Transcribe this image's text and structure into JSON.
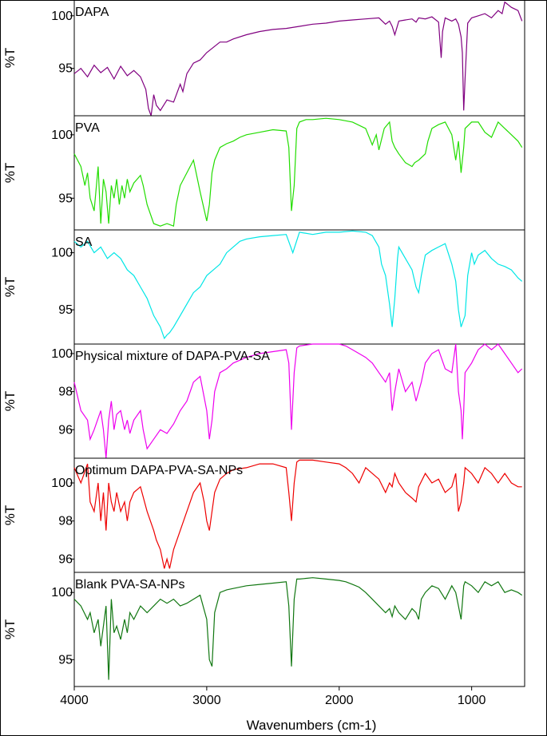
{
  "chart_data": {
    "type": "line",
    "xlabel": "Wavenumbers (cm-1)",
    "x_ticks": [
      4000,
      3000,
      2000,
      1000
    ],
    "xlim": [
      4000,
      600
    ],
    "panels": [
      {
        "name": "DAPA",
        "color": "#800080",
        "ylabel": "%T",
        "yticks": [
          95,
          100
        ],
        "ylim": [
          90.5,
          101.5
        ],
        "x": [
          4000,
          3950,
          3900,
          3850,
          3800,
          3750,
          3700,
          3650,
          3600,
          3550,
          3500,
          3460,
          3440,
          3420,
          3410,
          3400,
          3380,
          3350,
          3300,
          3250,
          3200,
          3180,
          3150,
          3100,
          3050,
          3000,
          2950,
          2900,
          2850,
          2800,
          2700,
          2600,
          2500,
          2400,
          2300,
          2200,
          2100,
          2000,
          1900,
          1800,
          1700,
          1650,
          1620,
          1600,
          1580,
          1550,
          1500,
          1450,
          1420,
          1400,
          1350,
          1300,
          1250,
          1230,
          1220,
          1200,
          1150,
          1120,
          1100,
          1080,
          1070,
          1060,
          1050,
          1030,
          1000,
          950,
          900,
          850,
          800,
          770,
          750,
          700,
          650,
          620
        ],
        "y": [
          94.5,
          95.0,
          94.2,
          95.3,
          94.6,
          95.1,
          94.0,
          95.2,
          94.3,
          94.8,
          94.2,
          93.0,
          91.2,
          90.5,
          91.5,
          92.5,
          91.5,
          91.0,
          92.0,
          91.8,
          93.5,
          92.8,
          94.5,
          95.5,
          95.8,
          96.5,
          97.0,
          97.5,
          97.5,
          97.8,
          98.2,
          98.5,
          98.7,
          98.8,
          99.0,
          99.2,
          99.3,
          99.5,
          99.6,
          99.7,
          99.8,
          99.2,
          99.5,
          99.0,
          98.2,
          99.5,
          99.6,
          99.7,
          99.4,
          99.8,
          99.7,
          99.9,
          99.4,
          96.0,
          98.5,
          99.8,
          99.5,
          99.7,
          99.2,
          98.0,
          96.5,
          91.0,
          94.0,
          99.3,
          99.8,
          100.0,
          100.2,
          99.8,
          100.5,
          100.2,
          101.3,
          100.8,
          100.5,
          99.5
        ]
      },
      {
        "name": "PVA",
        "color": "#22dd00",
        "ylabel": "%T",
        "yticks": [
          95,
          100
        ],
        "ylim": [
          92.5,
          101.5
        ],
        "x": [
          4000,
          3950,
          3920,
          3900,
          3880,
          3850,
          3820,
          3800,
          3780,
          3760,
          3740,
          3720,
          3700,
          3680,
          3660,
          3640,
          3620,
          3600,
          3580,
          3550,
          3500,
          3480,
          3450,
          3400,
          3350,
          3300,
          3250,
          3230,
          3200,
          3150,
          3100,
          3050,
          3000,
          2980,
          2960,
          2940,
          2900,
          2850,
          2800,
          2750,
          2700,
          2600,
          2500,
          2400,
          2380,
          2360,
          2340,
          2320,
          2300,
          2250,
          2200,
          2100,
          2000,
          1900,
          1800,
          1750,
          1720,
          1700,
          1660,
          1620,
          1600,
          1580,
          1550,
          1500,
          1450,
          1430,
          1400,
          1350,
          1330,
          1300,
          1250,
          1200,
          1150,
          1120,
          1100,
          1080,
          1060,
          1050,
          1000,
          950,
          900,
          850,
          800,
          750,
          700,
          650,
          620
        ],
        "y": [
          98.5,
          97.5,
          96.0,
          97.0,
          95.0,
          94.0,
          97.5,
          93.0,
          96.5,
          95.5,
          93.0,
          96.0,
          95.0,
          96.5,
          94.5,
          96.0,
          95.0,
          96.5,
          95.5,
          96.2,
          96.8,
          96.0,
          94.5,
          93.0,
          92.8,
          93.0,
          92.8,
          94.5,
          96.0,
          97.0,
          98.0,
          95.5,
          93.2,
          94.5,
          97.0,
          98.0,
          99.0,
          99.3,
          99.5,
          99.8,
          100.0,
          100.2,
          100.4,
          100.3,
          99.0,
          94.0,
          96.0,
          100.5,
          101.0,
          101.2,
          101.2,
          101.3,
          101.2,
          101.0,
          100.5,
          99.2,
          100.0,
          98.8,
          100.5,
          101.0,
          99.5,
          99.0,
          98.5,
          97.8,
          97.5,
          97.8,
          98.0,
          98.5,
          99.5,
          100.5,
          100.8,
          101.0,
          100.0,
          98.0,
          99.5,
          97.0,
          99.0,
          100.5,
          101.0,
          101.0,
          100.2,
          99.8,
          101.0,
          100.5,
          100.0,
          99.5,
          99.0
        ]
      },
      {
        "name": "SA",
        "color": "#00e6e6",
        "ylabel": "%T",
        "yticks": [
          95,
          100
        ],
        "ylim": [
          92.0,
          102.0
        ],
        "x": [
          4000,
          3950,
          3900,
          3850,
          3800,
          3750,
          3700,
          3650,
          3600,
          3550,
          3500,
          3450,
          3400,
          3350,
          3320,
          3300,
          3280,
          3250,
          3200,
          3150,
          3100,
          3050,
          3000,
          2950,
          2900,
          2850,
          2800,
          2750,
          2700,
          2600,
          2500,
          2400,
          2350,
          2300,
          2200,
          2100,
          2000,
          1900,
          1800,
          1750,
          1700,
          1680,
          1650,
          1620,
          1600,
          1580,
          1560,
          1550,
          1500,
          1450,
          1420,
          1400,
          1380,
          1350,
          1300,
          1250,
          1200,
          1150,
          1120,
          1100,
          1080,
          1050,
          1030,
          1000,
          980,
          950,
          900,
          850,
          800,
          750,
          700,
          650,
          620
        ],
        "y": [
          101.0,
          100.5,
          101.0,
          100.0,
          100.5,
          99.5,
          100.0,
          99.5,
          98.5,
          98.0,
          97.0,
          96.0,
          94.5,
          93.5,
          92.5,
          92.8,
          93.0,
          93.5,
          94.5,
          95.5,
          96.5,
          97.0,
          98.0,
          98.5,
          99.0,
          100.0,
          100.5,
          101.0,
          101.2,
          101.4,
          101.5,
          101.6,
          100.0,
          101.8,
          101.6,
          101.8,
          101.8,
          101.9,
          101.8,
          101.5,
          100.5,
          99.0,
          98.0,
          95.5,
          93.5,
          96.0,
          99.5,
          100.5,
          99.5,
          98.5,
          97.0,
          96.5,
          98.0,
          99.8,
          100.2,
          100.5,
          100.8,
          99.0,
          97.5,
          95.0,
          93.5,
          94.5,
          98.0,
          100.0,
          99.0,
          99.8,
          100.2,
          99.5,
          99.0,
          98.8,
          98.5,
          97.8,
          97.5
        ]
      },
      {
        "name": "Physical mixture of DAPA-PVA-SA",
        "color": "#ee00ee",
        "ylabel": "%T",
        "yticks": [
          96,
          98,
          100
        ],
        "ylim": [
          94.5,
          100.5
        ],
        "x": [
          4000,
          3950,
          3900,
          3880,
          3850,
          3800,
          3780,
          3760,
          3740,
          3720,
          3700,
          3680,
          3650,
          3620,
          3600,
          3580,
          3550,
          3500,
          3480,
          3450,
          3400,
          3350,
          3300,
          3250,
          3200,
          3150,
          3100,
          3050,
          3000,
          2980,
          2960,
          2940,
          2900,
          2850,
          2800,
          2700,
          2600,
          2500,
          2400,
          2380,
          2360,
          2340,
          2320,
          2300,
          2200,
          2100,
          2000,
          1950,
          1900,
          1850,
          1800,
          1750,
          1700,
          1650,
          1620,
          1600,
          1580,
          1550,
          1500,
          1450,
          1420,
          1400,
          1380,
          1350,
          1300,
          1250,
          1200,
          1150,
          1120,
          1100,
          1080,
          1070,
          1060,
          1050,
          1000,
          950,
          900,
          850,
          800,
          750,
          700,
          650,
          620
        ],
        "y": [
          98.5,
          97.0,
          96.5,
          95.5,
          96.0,
          97.0,
          96.0,
          94.5,
          96.5,
          97.5,
          96.0,
          96.8,
          97.0,
          96.0,
          96.5,
          95.8,
          96.5,
          97.0,
          96.0,
          95.0,
          95.5,
          96.0,
          95.8,
          96.3,
          97.0,
          97.5,
          98.5,
          98.8,
          97.0,
          95.5,
          96.5,
          98.0,
          99.0,
          99.2,
          99.5,
          99.8,
          100.0,
          100.1,
          100.2,
          99.5,
          96.0,
          99.0,
          100.3,
          100.4,
          100.5,
          100.5,
          100.5,
          100.4,
          100.2,
          100.0,
          99.8,
          99.5,
          99.0,
          98.5,
          99.0,
          97.0,
          98.0,
          99.2,
          98.0,
          98.5,
          97.5,
          98.0,
          98.5,
          99.5,
          100.0,
          100.2,
          99.2,
          99.0,
          100.5,
          98.0,
          97.0,
          95.5,
          97.0,
          99.0,
          99.5,
          100.2,
          100.5,
          100.2,
          100.5,
          100.0,
          99.5,
          99.0,
          99.2
        ]
      },
      {
        "name": "Optimum DAPA-PVA-SA-NPs",
        "color": "#ee0000",
        "ylabel": "%T",
        "yticks": [
          96,
          98,
          100
        ],
        "ylim": [
          95.3,
          101.3
        ],
        "x": [
          4000,
          3950,
          3900,
          3880,
          3850,
          3820,
          3800,
          3780,
          3760,
          3740,
          3720,
          3700,
          3680,
          3650,
          3620,
          3600,
          3580,
          3550,
          3500,
          3450,
          3400,
          3380,
          3350,
          3320,
          3300,
          3280,
          3250,
          3200,
          3150,
          3100,
          3050,
          3020,
          3000,
          2980,
          2960,
          2940,
          2900,
          2850,
          2800,
          2700,
          2600,
          2500,
          2400,
          2380,
          2360,
          2340,
          2320,
          2300,
          2200,
          2100,
          2000,
          1950,
          1900,
          1850,
          1800,
          1750,
          1700,
          1650,
          1620,
          1600,
          1580,
          1550,
          1500,
          1450,
          1420,
          1400,
          1350,
          1300,
          1250,
          1200,
          1150,
          1120,
          1100,
          1080,
          1060,
          1050,
          1000,
          950,
          900,
          850,
          800,
          750,
          700,
          650,
          620
        ],
        "y": [
          100.8,
          100.0,
          101.0,
          99.0,
          98.5,
          100.0,
          98.0,
          99.5,
          97.5,
          100.0,
          99.0,
          98.5,
          99.5,
          98.5,
          99.0,
          98.0,
          99.0,
          99.5,
          99.8,
          98.5,
          97.5,
          97.0,
          96.5,
          95.5,
          96.0,
          95.5,
          96.5,
          97.5,
          98.5,
          99.5,
          100.0,
          99.0,
          98.0,
          97.5,
          98.5,
          99.5,
          100.2,
          100.5,
          100.7,
          100.8,
          101.0,
          101.0,
          100.8,
          99.5,
          98.0,
          100.0,
          101.1,
          101.2,
          101.2,
          101.1,
          101.0,
          100.8,
          100.5,
          100.0,
          100.8,
          100.5,
          100.2,
          99.5,
          100.0,
          99.8,
          100.5,
          100.0,
          99.5,
          99.2,
          99.0,
          99.8,
          100.5,
          100.0,
          100.2,
          99.5,
          99.8,
          100.5,
          98.5,
          99.0,
          100.0,
          100.8,
          100.5,
          100.0,
          100.8,
          100.5,
          100.0,
          100.5,
          100.0,
          99.8,
          99.8
        ]
      },
      {
        "name": "Blank PVA-SA-NPs",
        "color": "#117711",
        "ylabel": "%T",
        "yticks": [
          95,
          100
        ],
        "ylim": [
          93.0,
          101.5
        ],
        "x": [
          4000,
          3950,
          3900,
          3880,
          3850,
          3820,
          3800,
          3780,
          3760,
          3740,
          3720,
          3700,
          3680,
          3650,
          3620,
          3600,
          3580,
          3550,
          3500,
          3450,
          3400,
          3350,
          3300,
          3250,
          3200,
          3150,
          3100,
          3050,
          3000,
          2980,
          2960,
          2940,
          2900,
          2850,
          2800,
          2700,
          2600,
          2500,
          2400,
          2380,
          2360,
          2340,
          2320,
          2300,
          2200,
          2100,
          2000,
          1950,
          1900,
          1850,
          1800,
          1750,
          1700,
          1650,
          1620,
          1600,
          1580,
          1550,
          1500,
          1450,
          1420,
          1400,
          1380,
          1350,
          1300,
          1250,
          1200,
          1150,
          1120,
          1100,
          1080,
          1060,
          1050,
          1000,
          950,
          900,
          850,
          800,
          750,
          700,
          650,
          620
        ],
        "y": [
          99.5,
          99.0,
          98.0,
          98.5,
          97.0,
          98.0,
          96.0,
          97.5,
          99.0,
          93.5,
          99.5,
          97.0,
          97.5,
          96.5,
          98.0,
          97.0,
          98.5,
          98.0,
          99.0,
          98.5,
          99.0,
          99.5,
          99.2,
          99.5,
          99.0,
          99.2,
          99.5,
          99.8,
          98.0,
          95.0,
          94.5,
          98.5,
          100.0,
          100.2,
          100.3,
          100.5,
          100.6,
          100.7,
          100.8,
          99.0,
          94.5,
          99.5,
          101.0,
          101.0,
          101.1,
          101.0,
          100.9,
          100.8,
          100.6,
          100.4,
          100.0,
          99.5,
          99.0,
          98.5,
          98.8,
          98.2,
          99.0,
          98.5,
          98.0,
          98.8,
          98.5,
          98.0,
          99.5,
          100.0,
          100.5,
          100.3,
          99.5,
          100.5,
          100.0,
          99.0,
          98.0,
          100.5,
          100.8,
          100.5,
          100.0,
          100.8,
          100.5,
          100.8,
          100.0,
          100.2,
          100.0,
          99.8
        ]
      }
    ]
  }
}
